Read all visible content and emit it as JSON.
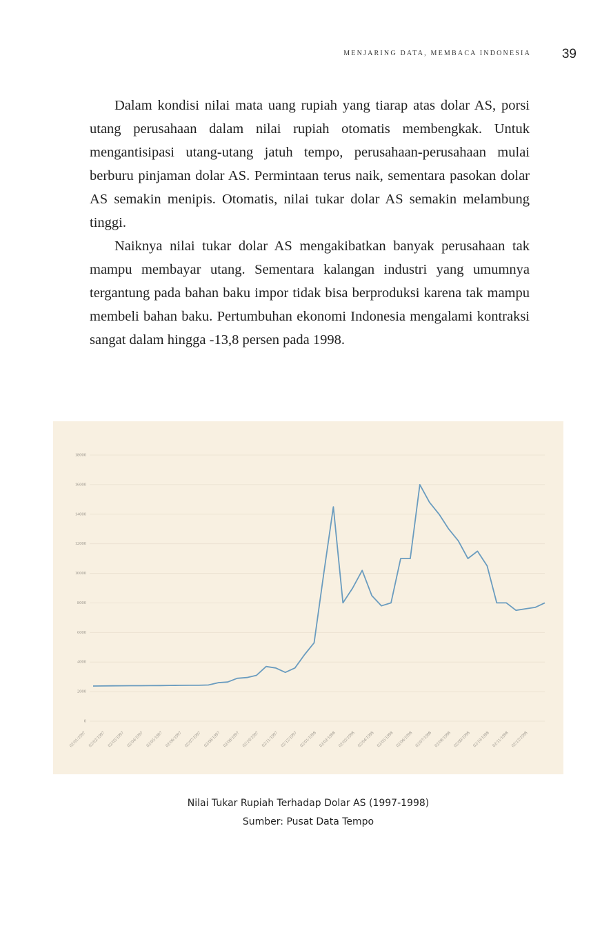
{
  "header": {
    "title": "MENJARING DATA, MEMBACA INDONESIA",
    "page_number": "39"
  },
  "paragraphs": [
    "Dalam kondisi nilai mata uang rupiah yang tiarap atas dolar AS, porsi utang perusahaan dalam nilai rupiah otomatis membengkak. Untuk mengantisipasi utang-utang jatuh tempo, perusahaan-perusahaan mulai berburu pinjaman dolar AS. Permintaan terus naik, sementara pasokan dolar AS semakin menipis. Otomatis, nilai tukar dolar AS semakin melambung tinggi.",
    "Naiknya nilai tukar dolar AS mengakibatkan banyak perusahaan tak mampu membayar utang. Sementara kalangan industri yang umumnya tergantung pada bahan baku impor tidak bisa berproduksi karena tak mampu membeli bahan baku. Pertumbuhan ekonomi Indonesia mengalami kontraksi sangat dalam hingga -13,8 persen pada 1998."
  ],
  "chart_data": {
    "type": "line",
    "categories": [
      "02/01/1997",
      null,
      "02/02/1997",
      null,
      "02/03/1997",
      null,
      "02/04/1997",
      null,
      "02/05/1997",
      null,
      "02/06/1997",
      null,
      "02/07/1997",
      null,
      "02/08/1997",
      null,
      "02/09/1997",
      null,
      "02/10/1997",
      null,
      "02/11/1997",
      null,
      "02/12/1997",
      null,
      "02/01/1998",
      null,
      "02/02/1998",
      null,
      "02/03/1998",
      null,
      "02/04/1998",
      null,
      "02/05/1998",
      null,
      "02/06/1998",
      null,
      "02/07/1998",
      null,
      "02/08/1998",
      null,
      "02/09/1998",
      null,
      "02/10/1998",
      null,
      "02/11/1998",
      null,
      "02/12/1998",
      null
    ],
    "series": [
      {
        "color": "#6a9cbf",
        "values": [
          2380,
          2385,
          2390,
          2395,
          2400,
          2400,
          2405,
          2410,
          2420,
          2425,
          2430,
          2430,
          2450,
          2600,
          2650,
          2900,
          2950,
          3100,
          3700,
          3600,
          3300,
          3600,
          4500,
          5300,
          10000,
          14500,
          8000,
          9000,
          10200,
          8500,
          7800,
          8000,
          11000,
          11000,
          16000,
          14800,
          14000,
          13000,
          12200,
          11000,
          11500,
          10500,
          8000,
          8000,
          7500,
          7600,
          7700,
          8000
        ]
      }
    ],
    "ylim": [
      0,
      18000
    ],
    "yticks": [
      0,
      2000,
      4000,
      6000,
      8000,
      10000,
      12000,
      14000,
      16000,
      18000
    ],
    "grid": true
  },
  "figure_caption": [
    "Nilai Tukar Rupiah Terhadap Dolar AS (1997-1998)",
    "Sumber: Pusat Data Tempo"
  ]
}
